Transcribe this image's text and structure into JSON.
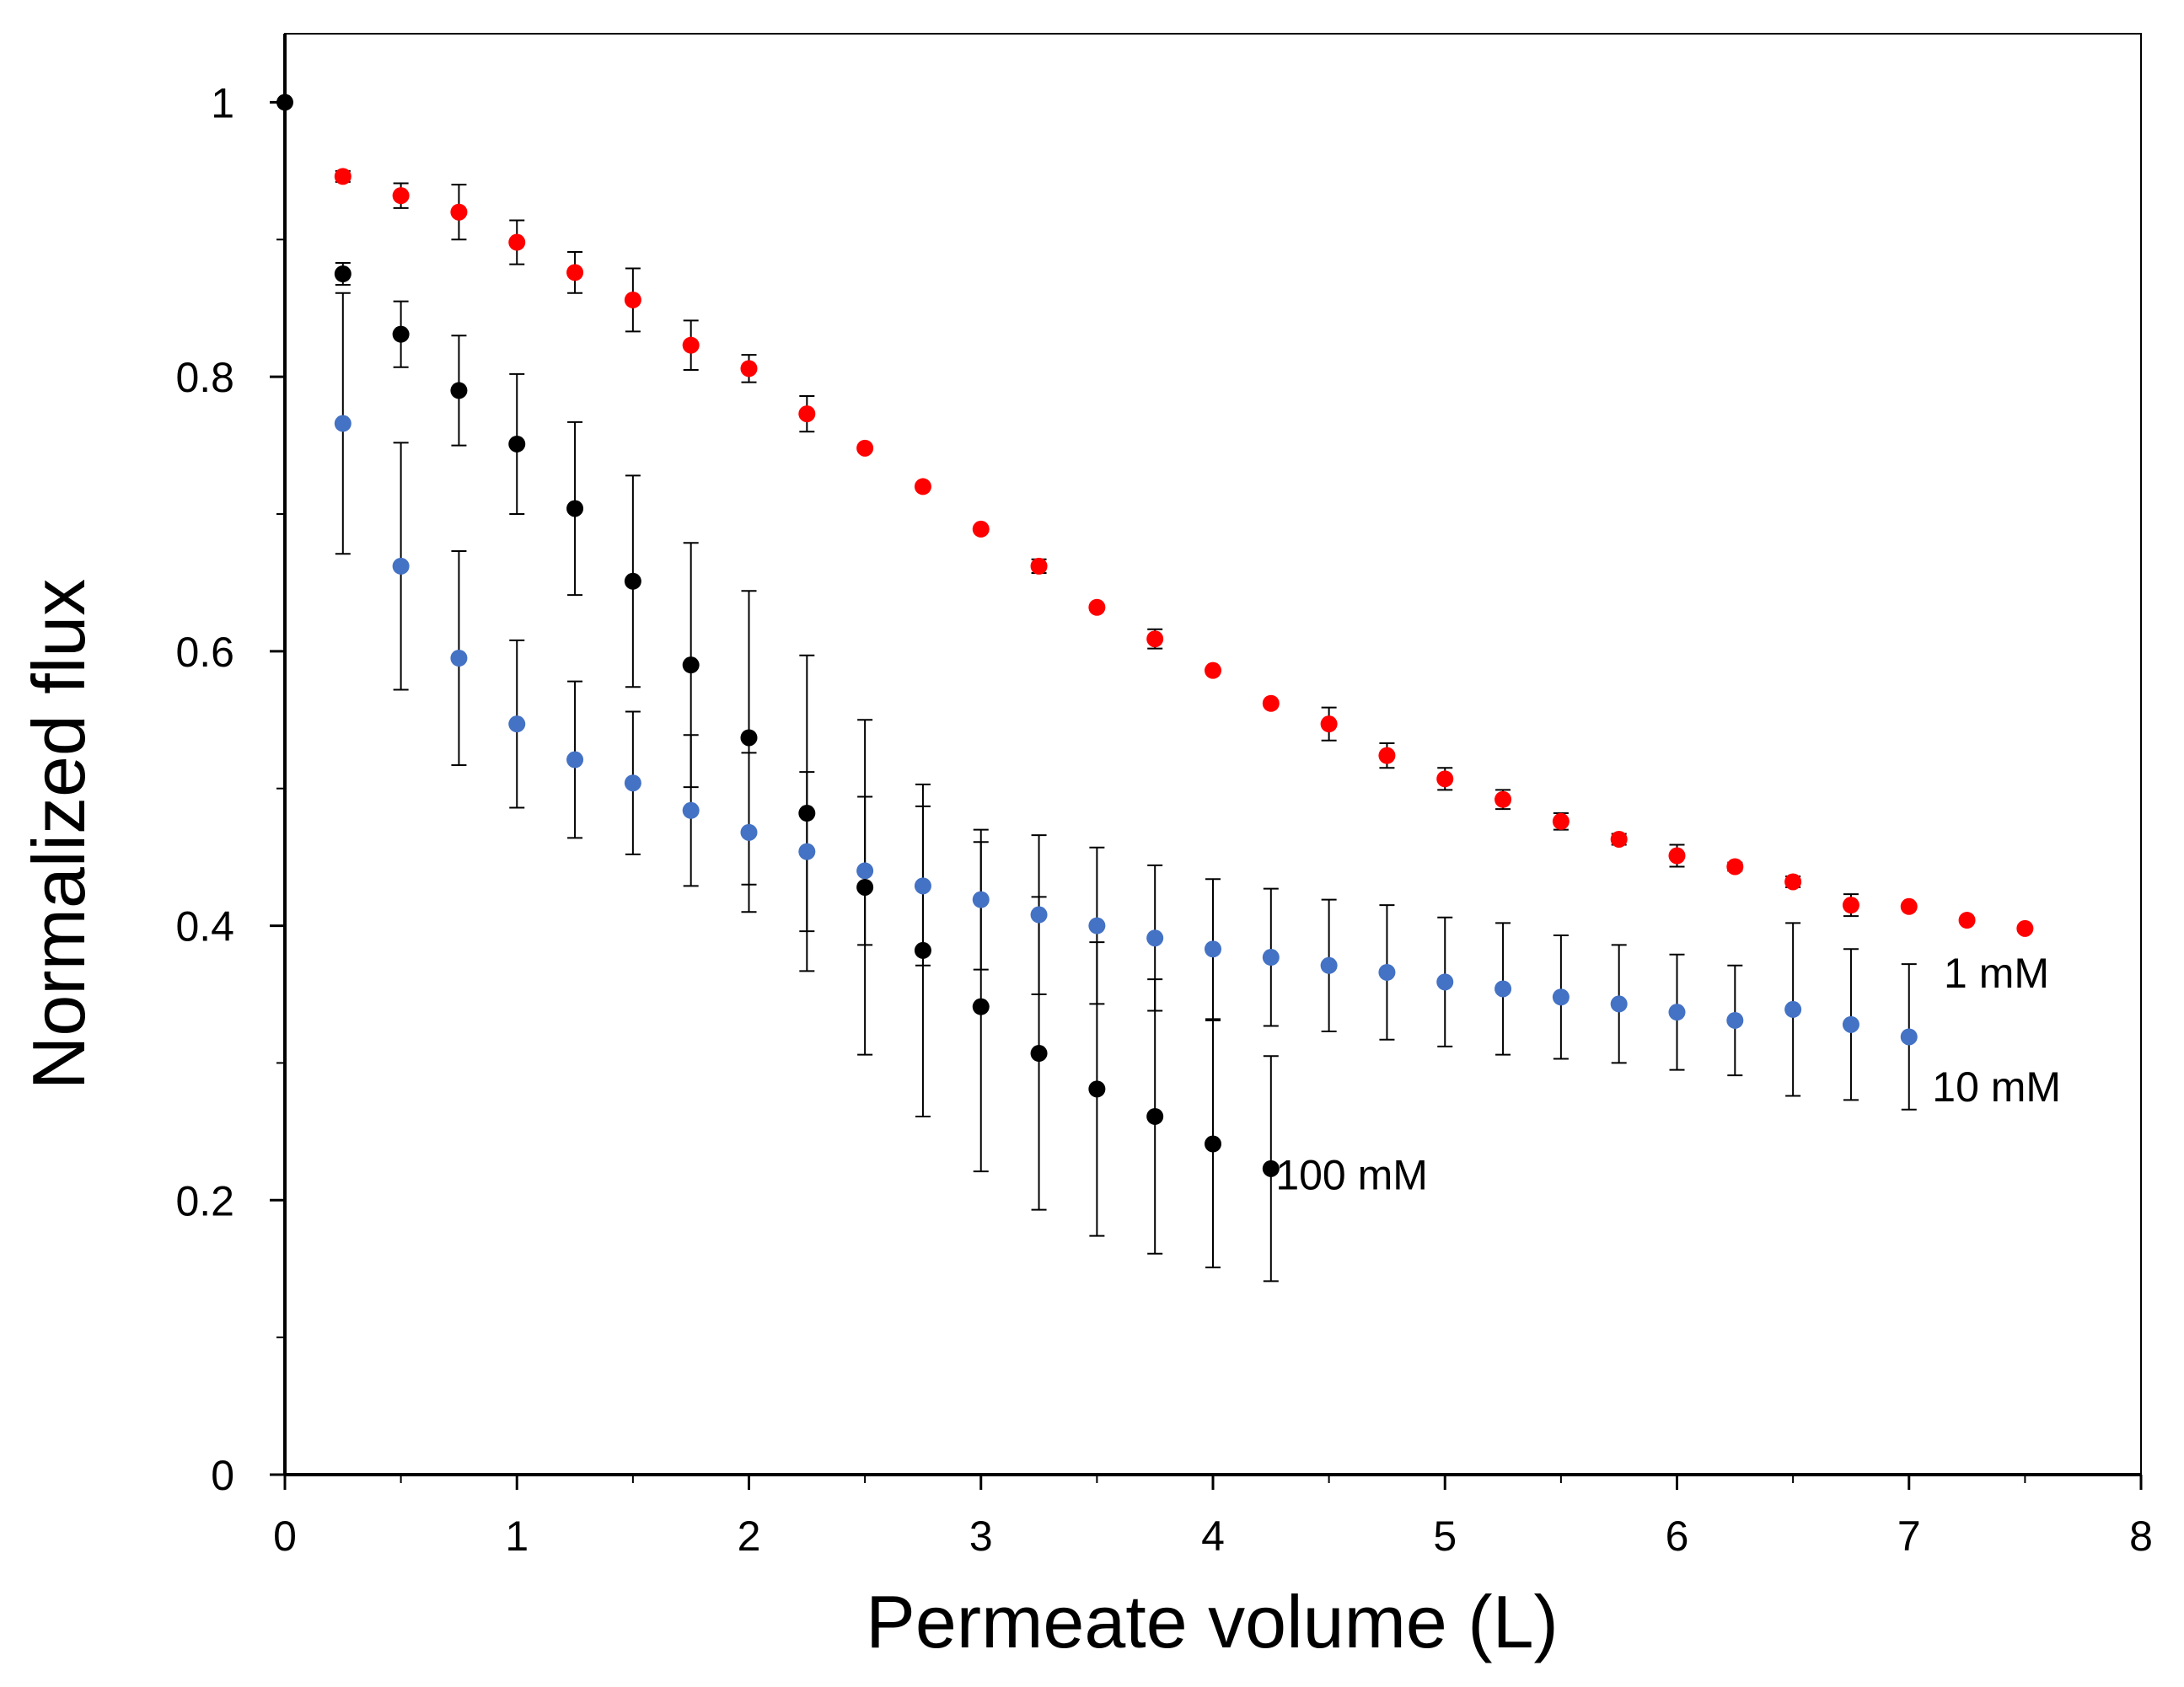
{
  "chart_data": {
    "type": "scatter",
    "title": "",
    "xlabel": "Permeate volume (L)",
    "ylabel": "Normalized flux",
    "xlim": [
      0,
      8
    ],
    "ylim": [
      0,
      1.05
    ],
    "xticks": [
      0,
      1,
      2,
      3,
      4,
      5,
      6,
      7,
      8
    ],
    "yticks": [
      0,
      0.2,
      0.4,
      0.6,
      0.8,
      1
    ],
    "x_tick_labels": [
      "0",
      "1",
      "2",
      "3",
      "4",
      "5",
      "6",
      "7",
      "8"
    ],
    "y_tick_labels": [
      "0",
      "0.2",
      "0.4",
      "0.6",
      "0.8",
      "1"
    ],
    "grid": false,
    "series": [
      {
        "name": "1 mM",
        "color": "#ff0000",
        "label": "1 mM",
        "x": [
          0.25,
          0.5,
          0.75,
          1.0,
          1.25,
          1.5,
          1.75,
          2.0,
          2.25,
          2.5,
          2.75,
          3.0,
          3.25,
          3.5,
          3.75,
          4.0,
          4.25,
          4.5,
          4.75,
          5.0,
          5.25,
          5.5,
          5.75,
          6.0,
          6.25,
          6.5,
          6.75,
          7.0,
          7.25,
          7.5
        ],
        "y": [
          0.946,
          0.932,
          0.92,
          0.898,
          0.876,
          0.856,
          0.823,
          0.806,
          0.773,
          0.748,
          0.72,
          0.689,
          0.662,
          0.632,
          0.609,
          0.586,
          0.562,
          0.547,
          0.524,
          0.507,
          0.492,
          0.476,
          0.463,
          0.451,
          0.443,
          0.432,
          0.415,
          0.414,
          0.404,
          0.398
        ],
        "err": [
          0.004,
          0.009,
          0.02,
          0.016,
          0.015,
          0.023,
          0.018,
          0.01,
          0.013,
          0.002,
          0.002,
          0.002,
          0.005,
          0.002,
          0.007,
          0.002,
          0.002,
          0.012,
          0.009,
          0.008,
          0.007,
          0.006,
          0.004,
          0.008,
          0.003,
          0.004,
          0.008,
          0.002,
          0.002,
          0.002
        ]
      },
      {
        "name": "10 mM",
        "color": "#4472c4",
        "label": "10 mM",
        "x": [
          0.25,
          0.5,
          0.75,
          1.0,
          1.25,
          1.5,
          1.75,
          2.0,
          2.25,
          2.5,
          2.75,
          3.0,
          3.25,
          3.5,
          3.75,
          4.0,
          4.25,
          4.5,
          4.75,
          5.0,
          5.25,
          5.5,
          5.75,
          6.0,
          6.25,
          6.5,
          6.75,
          7.0
        ],
        "y": [
          0.766,
          0.662,
          0.595,
          0.547,
          0.521,
          0.504,
          0.484,
          0.468,
          0.454,
          0.44,
          0.429,
          0.419,
          0.408,
          0.4,
          0.391,
          0.383,
          0.377,
          0.371,
          0.366,
          0.359,
          0.354,
          0.348,
          0.343,
          0.337,
          0.331,
          0.339,
          0.328,
          0.319
        ],
        "err": [
          0.095,
          0.09,
          0.078,
          0.061,
          0.057,
          0.052,
          0.055,
          0.058,
          0.058,
          0.054,
          0.058,
          0.051,
          0.058,
          0.057,
          0.053,
          0.051,
          0.05,
          0.048,
          0.049,
          0.047,
          0.048,
          0.045,
          0.043,
          0.042,
          0.04,
          0.063,
          0.055,
          0.053
        ]
      },
      {
        "name": "100 mM",
        "color": "#000000",
        "label": "100 mM",
        "x": [
          0,
          0.25,
          0.5,
          0.75,
          1.0,
          1.25,
          1.5,
          1.75,
          2.0,
          2.25,
          2.5,
          2.75,
          3.0,
          3.25,
          3.5,
          3.75,
          4.0,
          4.25
        ],
        "y": [
          1.0,
          0.875,
          0.831,
          0.79,
          0.751,
          0.704,
          0.651,
          0.59,
          0.537,
          0.482,
          0.428,
          0.382,
          0.341,
          0.307,
          0.281,
          0.261,
          0.241,
          0.223
        ],
        "err": [
          0,
          0.008,
          0.024,
          0.04,
          0.051,
          0.063,
          0.077,
          0.089,
          0.107,
          0.115,
          0.122,
          0.121,
          0.12,
          0.114,
          0.107,
          0.1,
          0.09,
          0.082
        ]
      }
    ]
  }
}
